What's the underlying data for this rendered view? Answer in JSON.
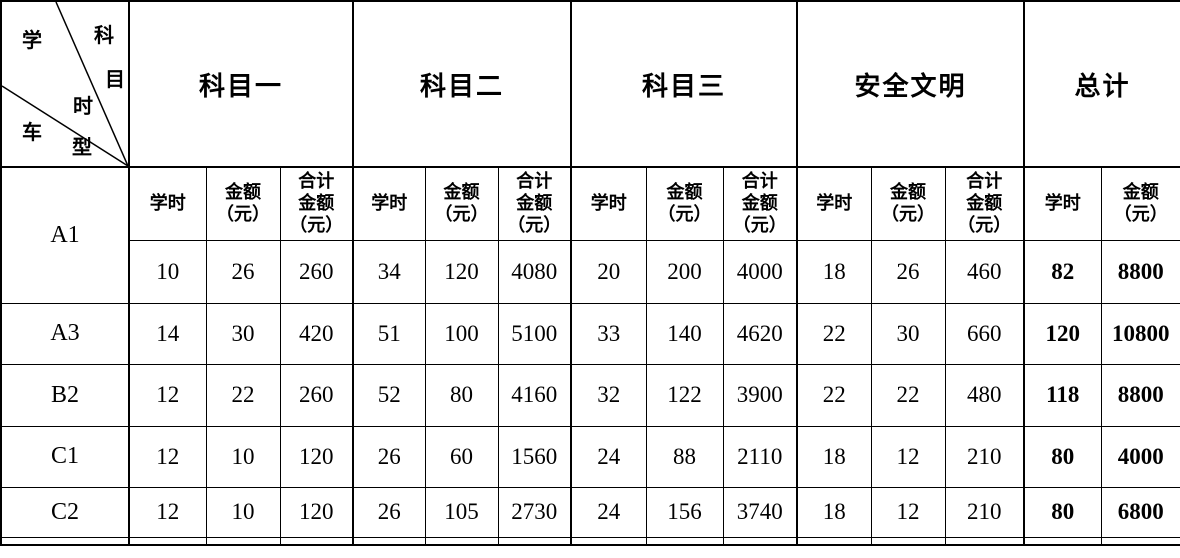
{
  "table": {
    "corner": {
      "subject": "科目",
      "hours": "学时",
      "vehicle": "车型"
    },
    "group_headers": [
      {
        "label": "科目一"
      },
      {
        "label": "科目二"
      },
      {
        "label": "科目三"
      },
      {
        "label": "安全文明"
      },
      {
        "label": "总计"
      }
    ],
    "sub_headers": {
      "hours": "学时",
      "amount": "金额\n（元）",
      "total_amount": "合计\n金额\n（元）"
    },
    "rows": [
      {
        "type": "A1",
        "values": [
          10,
          26,
          260,
          34,
          120,
          4080,
          20,
          200,
          4000,
          18,
          26,
          460,
          82,
          8800
        ]
      },
      {
        "type": "A3",
        "values": [
          14,
          30,
          420,
          51,
          100,
          5100,
          33,
          140,
          4620,
          22,
          30,
          660,
          120,
          10800
        ]
      },
      {
        "type": "B2",
        "values": [
          12,
          22,
          260,
          52,
          80,
          4160,
          32,
          122,
          3900,
          22,
          22,
          480,
          118,
          8800
        ]
      },
      {
        "type": "C1",
        "values": [
          12,
          10,
          120,
          26,
          60,
          1560,
          24,
          88,
          2110,
          18,
          12,
          210,
          80,
          4000
        ]
      },
      {
        "type": "C2",
        "values": [
          12,
          10,
          120,
          26,
          105,
          2730,
          24,
          156,
          3740,
          18,
          12,
          210,
          80,
          6800
        ]
      }
    ],
    "colors": {
      "border": "#000000",
      "text": "#000000",
      "background": "#ffffff"
    }
  }
}
